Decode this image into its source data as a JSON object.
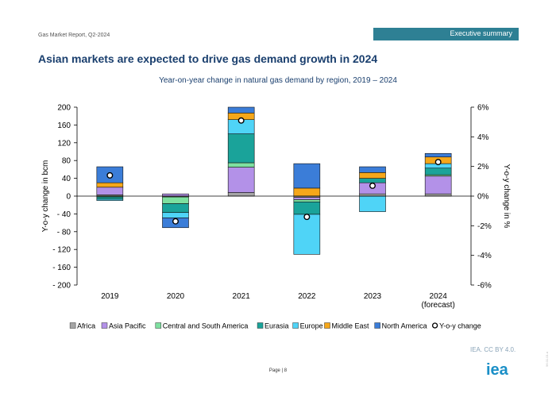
{
  "header": {
    "report": "Gas Market Report, Q2-2024",
    "section": "Executive summary"
  },
  "page": {
    "title": "Asian markets are expected to drive gas demand growth in 2024",
    "number_label": "Page | 8",
    "credit": "IEA. CC BY 4.0.",
    "logo_text": "iea",
    "side_id": "96.01.01.a"
  },
  "colors": {
    "Africa": "#a5a5a5",
    "Asia Pacific": "#b391e8",
    "Central and South America": "#7ee0a0",
    "Eurasia": "#1aa39a",
    "Europe": "#4fd4f7",
    "Middle East": "#f5a71a",
    "North America": "#3b7dd8",
    "band": "#2e8094",
    "title": "#1a3f6e",
    "logo": "#1a8fc7"
  },
  "chart_data": {
    "type": "bar",
    "stacked": true,
    "title": "Year-on-year change in natural gas demand by region, 2019 – 2024",
    "categories": [
      "2019",
      "2020",
      "2021",
      "2022",
      "2023",
      "2024\n(forecast)"
    ],
    "ylabel": "Y-o-y change in bcm",
    "ylabel_right": "Y-o-y change in %",
    "ylim": [
      -200,
      200
    ],
    "yticks": [
      200,
      160,
      120,
      80,
      40,
      0,
      -40,
      -80,
      -120,
      -160,
      -200
    ],
    "ytick_labels": [
      "200",
      "160",
      "120",
      "80",
      "40",
      "0",
      "- 40",
      "- 80",
      "- 120",
      "- 160",
      "- 200"
    ],
    "ylim_right": [
      -6,
      6
    ],
    "yticks_right": [
      6,
      4,
      2,
      0,
      -2,
      -4,
      -6
    ],
    "ytick_labels_right": [
      "6%",
      "4%",
      "2%",
      "0%",
      "-2%",
      "-4%",
      "-6%"
    ],
    "series": [
      {
        "name": "Africa",
        "values": [
          3,
          -2,
          8,
          -3,
          5,
          5
        ]
      },
      {
        "name": "Asia Pacific",
        "values": [
          17,
          5,
          57,
          -5,
          25,
          40
        ]
      },
      {
        "name": "Central and South America",
        "values": [
          -2,
          -15,
          10,
          -5,
          0,
          3
        ]
      },
      {
        "name": "Eurasia",
        "values": [
          -5,
          -20,
          65,
          -28,
          10,
          15
        ]
      },
      {
        "name": "Europe",
        "values": [
          -3,
          -12,
          32,
          -90,
          -35,
          10
        ]
      },
      {
        "name": "Middle East",
        "values": [
          10,
          0,
          15,
          18,
          13,
          15
        ]
      },
      {
        "name": "North America",
        "values": [
          36,
          -22,
          13,
          55,
          13,
          8
        ]
      }
    ],
    "line": {
      "name": "Y-o-y change",
      "axis": "right",
      "values": [
        1.4,
        -1.7,
        5.1,
        -1.4,
        0.7,
        2.3
      ]
    },
    "legend_position": "bottom"
  }
}
